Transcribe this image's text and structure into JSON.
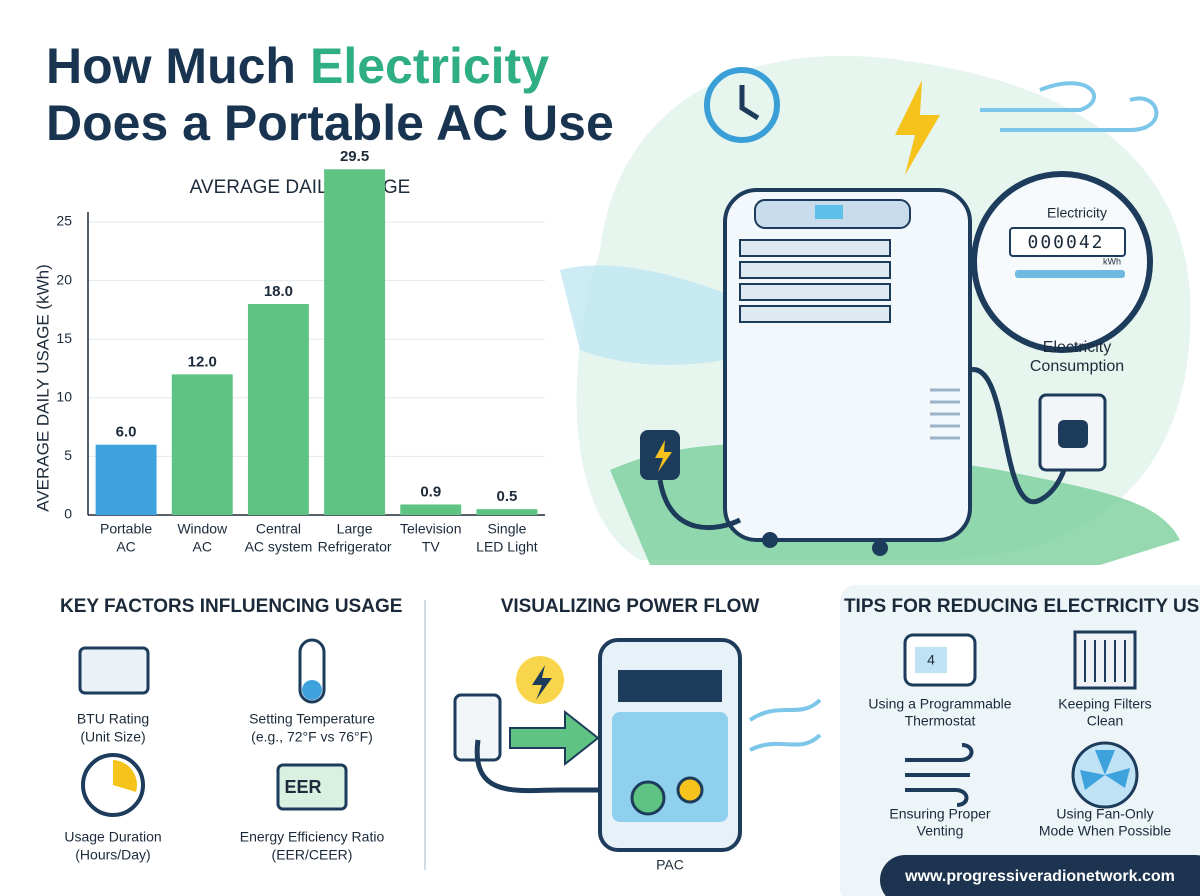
{
  "header": {
    "title_lead": "How Much",
    "title_highlight": "Electricity",
    "title_rest": "Does a Portable AC Use"
  },
  "chart_data": {
    "type": "bar",
    "title": "AVERAGE DAILY USAGE",
    "y_label": "AVERAGE DAILY USAGE (kWh)",
    "categories": [
      [
        "Portable",
        "AC"
      ],
      [
        "Window",
        "AC"
      ],
      [
        "Central",
        "AC system"
      ],
      [
        "Large",
        "Refrigerator"
      ],
      [
        "Television",
        "TV"
      ],
      [
        "Single",
        "LED Light"
      ]
    ],
    "values": [
      6,
      12,
      18,
      29.5,
      0.9,
      0.5
    ],
    "value_labels": [
      "6.0",
      "12.0",
      "18.0",
      "29.5",
      "0.9",
      "0.5"
    ],
    "colors": [
      "#3ea3dd",
      "#5fc383",
      "#5fc383",
      "#5fc383",
      "#5fc383",
      "#5fc383"
    ],
    "ylim": [
      0,
      25
    ],
    "yticks": [
      0,
      5,
      10,
      15,
      20,
      25
    ],
    "grid": true
  },
  "illustration": {
    "meter_title": "Electricity",
    "meter_reading": "000042",
    "meter_unit": "kWh",
    "consumption_label": [
      "Electricity",
      "Consumption"
    ]
  },
  "key_factors": {
    "title": "KEY FACTORS INFLUENCING USAGE",
    "icon_text": "EER",
    "items": [
      [
        "BTU Rating",
        "(Unit Size)"
      ],
      [
        "Setting Temperature",
        "(e.g., 72°F vs 76°F)"
      ],
      [
        "Usage Duration",
        "(Hours/Day)"
      ],
      [
        "Energy Efficiency Ratio",
        "(EER/CEER)"
      ]
    ]
  },
  "power_flow": {
    "title": "VISUALIZING POWER FLOW",
    "unit_label": "PAC"
  },
  "tips": {
    "title": "TIPS FOR REDUCING ELECTRICITY USE",
    "thermostat_display": "4",
    "items": [
      [
        "Using a Programmable",
        "Thermostat"
      ],
      [
        "Keeping Filters",
        "Clean"
      ],
      [
        "Ensuring Proper",
        "Venting"
      ],
      [
        "Using Fan-Only",
        "Mode When Possible"
      ]
    ]
  },
  "footer": {
    "url": "www.progressiveradionetwork.com"
  }
}
